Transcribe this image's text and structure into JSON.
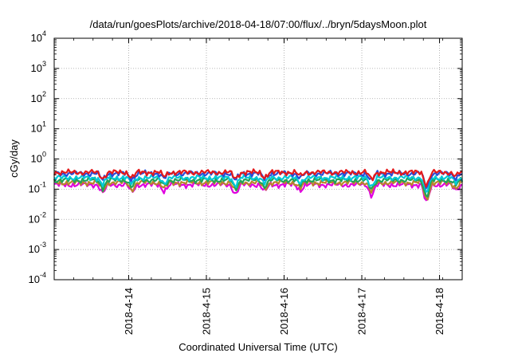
{
  "chart_data": {
    "type": "line",
    "title": "/data/run/goesPlots/archive/2018-04-18/07:00/flux/../bryn/5daysMoon.plot",
    "xlabel": "Coordinated Universal Time (UTC)",
    "ylabel": "cGy/day",
    "y_scale": "log",
    "ylim": [
      0.0001,
      10000
    ],
    "y_ticks": [
      {
        "value": 0.0001,
        "base": "10",
        "exp": "-4"
      },
      {
        "value": 0.001,
        "base": "10",
        "exp": "-3"
      },
      {
        "value": 0.01,
        "base": "10",
        "exp": "-2"
      },
      {
        "value": 0.1,
        "base": "10",
        "exp": "-1"
      },
      {
        "value": 1,
        "base": "10",
        "exp": "0"
      },
      {
        "value": 10,
        "base": "10",
        "exp": "1"
      },
      {
        "value": 100,
        "base": "10",
        "exp": "2"
      },
      {
        "value": 1000,
        "base": "10",
        "exp": "3"
      },
      {
        "value": 10000,
        "base": "10",
        "exp": "4"
      }
    ],
    "xlim": [
      "2018-04-13 01:00",
      "2018-04-18 07:00"
    ],
    "x_ticks": [
      "2018-4-14",
      "2018-4-15",
      "2018-4-16",
      "2018-4-17",
      "2018-4-18"
    ],
    "grid": true,
    "legend": "none",
    "series": [
      {
        "color": "#e41a1c",
        "baseline": 0.36
      },
      {
        "color": "#2a4bd7",
        "baseline": 0.33
      },
      {
        "color": "#00c8d7",
        "baseline": 0.24
      },
      {
        "color": "#1fa35a",
        "baseline": 0.2
      },
      {
        "color": "#b8862b",
        "baseline": 0.165
      },
      {
        "color": "#e000e0",
        "baseline": 0.14
      }
    ],
    "dips": [
      {
        "date": "2018-04-13 16:00",
        "value": 0.07
      },
      {
        "date": "2018-04-14 01:00",
        "value": 0.075
      },
      {
        "date": "2018-04-14 11:00",
        "value": 0.085
      },
      {
        "date": "2018-04-15 09:00",
        "value": 0.065
      },
      {
        "date": "2018-04-15 18:00",
        "value": 0.08
      },
      {
        "date": "2018-04-16 05:00",
        "value": 0.09
      },
      {
        "date": "2018-04-17 03:00",
        "value": 0.06
      },
      {
        "date": "2018-04-17 20:00",
        "value": 0.03
      },
      {
        "date": "2018-04-18 05:00",
        "value": 0.09
      }
    ]
  }
}
